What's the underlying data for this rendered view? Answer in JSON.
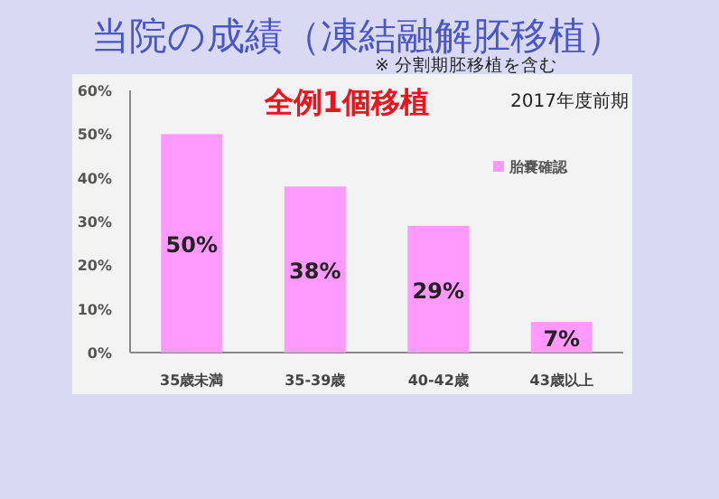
{
  "chart_data": {
    "type": "bar",
    "title": "当院の成績（凍結融解胚移植）",
    "subtitle": "※ 分割期胚移植を含む",
    "annotations": [
      "全例1個移植",
      "2017年度前期"
    ],
    "categories": [
      "35歳未満",
      "35-39歳",
      "40-42歳",
      "43歳以上"
    ],
    "series": [
      {
        "name": "胎嚢確認",
        "color": "#ff99ff",
        "values": [
          50,
          38,
          29,
          7
        ]
      }
    ],
    "value_labels": [
      "50%",
      "38%",
      "29%",
      "7%"
    ],
    "ylim": [
      0,
      60
    ],
    "yticks": [
      {
        "value": 0,
        "label": "0%"
      },
      {
        "value": 10,
        "label": "10%"
      },
      {
        "value": 20,
        "label": "20%"
      },
      {
        "value": 30,
        "label": "30%"
      },
      {
        "value": 40,
        "label": "40%"
      },
      {
        "value": 50,
        "label": "50%"
      },
      {
        "value": 60,
        "label": "60%"
      }
    ],
    "legend": "right"
  }
}
